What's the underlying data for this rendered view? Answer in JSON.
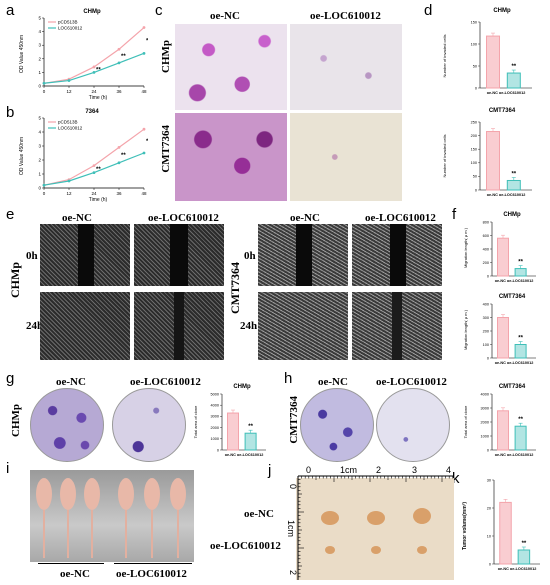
{
  "panels": {
    "a": "a",
    "b": "b",
    "c": "c",
    "d": "d",
    "e": "e",
    "f": "f",
    "g": "g",
    "h": "h",
    "i": "i",
    "j": "j",
    "k": "k"
  },
  "panel_a": {
    "title": "CHMp",
    "xlabel": "Time (h)",
    "ylabel": "OD Value 450nm",
    "legend": [
      "pCD513B",
      "LOC610012"
    ],
    "sig": "**"
  },
  "panel_b": {
    "title": "7364",
    "xlabel": "Time (h)",
    "ylabel": "OD Value 450nm",
    "legend": [
      "pCD513B",
      "LOC610012"
    ],
    "sig": "**"
  },
  "panel_c": {
    "col1": "oe-NC",
    "col2": "oe-LOC610012",
    "row1": "CHMp",
    "row2": "CMT7364"
  },
  "panel_d1": {
    "title": "CHMp",
    "ylabel": "Number of invaded cells",
    "xlabel": "oe-NC oe-LOC610012",
    "sig": "**"
  },
  "panel_d2": {
    "title": "CMT7364",
    "ylabel": "Number of invaded cells",
    "xlabel": "oe-NC oe-LOC610012",
    "sig": "**"
  },
  "panel_e": {
    "col1": "oe-NC",
    "col2": "oe-LOC610012",
    "col3": "oe-NC",
    "col4": "oe-LOC610012",
    "row1": "0h",
    "row2": "24h",
    "group1": "CHMp",
    "group2": "CMT7364"
  },
  "panel_f1": {
    "title": "CHMp",
    "ylabel": "Migration length( μ m )",
    "xlabel": "oe-NC oe-LOC610012",
    "sig": "**"
  },
  "panel_f2": {
    "title": "CMT7364",
    "ylabel": "Migration length( μ m )",
    "xlabel": "oe-NC oe-LOC610012",
    "sig": "**"
  },
  "panel_g": {
    "col1": "oe-NC",
    "col2": "oe-LOC610012",
    "row": "CHMp",
    "chart_title": "CHMp",
    "ylabel": "Total area of clone",
    "xlabel": "oe-NC oe-LOC610012",
    "sig": "**"
  },
  "panel_h": {
    "col1": "oe-NC",
    "col2": "oe-LOC610012",
    "row": "CMT7364",
    "chart_title": "CMT7364",
    "ylabel": "Total area of clone",
    "xlabel": "oe-NC oe-LOC610012",
    "sig": "**"
  },
  "panel_i": {
    "group1": "oe-NC",
    "group2": "oe-LOC610012"
  },
  "panel_j": {
    "row1": "oe-NC",
    "row2": "oe-LOC610012",
    "ruler_top": [
      "0",
      "1cm",
      "2",
      "3",
      "4"
    ],
    "ruler_left": [
      "0",
      "1cm",
      "2"
    ]
  },
  "panel_k": {
    "ylabel": "Tumor volume(mm³)",
    "xlabel": "oe-NC oe-LOC610012",
    "sig": "**"
  },
  "chart_data": [
    {
      "id": "a",
      "type": "line",
      "title": "CHMp",
      "xlabel": "Time (h)",
      "ylabel": "OD Value 450nm",
      "x": [
        0,
        12,
        24,
        36,
        48
      ],
      "xlim": [
        0,
        48
      ],
      "ylim": [
        0,
        5
      ],
      "xticks": [
        "0",
        "12",
        "24",
        "36",
        "48"
      ],
      "yticks": [
        "0",
        "1",
        "2",
        "3",
        "4",
        "5"
      ],
      "series": [
        {
          "name": "pCD513B",
          "values": [
            0.2,
            0.5,
            1.4,
            2.7,
            4.3
          ],
          "color": "#f4a4ab"
        },
        {
          "name": "LOC610012",
          "values": [
            0.2,
            0.4,
            1.0,
            1.7,
            2.4
          ],
          "color": "#3fbfb8"
        }
      ]
    },
    {
      "id": "b",
      "type": "line",
      "title": "7364",
      "xlabel": "Time (h)",
      "ylabel": "OD Value 450nm",
      "x": [
        0,
        12,
        24,
        36,
        48
      ],
      "xlim": [
        0,
        48
      ],
      "ylim": [
        0,
        5
      ],
      "xticks": [
        "0",
        "12",
        "24",
        "36",
        "48"
      ],
      "yticks": [
        "0",
        "1",
        "2",
        "3",
        "4",
        "5"
      ],
      "series": [
        {
          "name": "pCD513B",
          "values": [
            0.2,
            0.6,
            1.6,
            2.9,
            4.2
          ],
          "color": "#f4a4ab"
        },
        {
          "name": "LOC610012",
          "values": [
            0.2,
            0.5,
            1.1,
            1.8,
            2.5
          ],
          "color": "#3fbfb8"
        }
      ]
    },
    {
      "id": "d1",
      "type": "bar",
      "title": "CHMp",
      "categories": [
        "oe-NC",
        "oe-LOC610012"
      ],
      "values": [
        118,
        34
      ],
      "ylim": [
        0,
        150
      ],
      "yticks": [
        "0",
        "50",
        "100",
        "150"
      ],
      "colors": [
        "#f4a4ab",
        "#3fbfb8"
      ]
    },
    {
      "id": "d2",
      "type": "bar",
      "title": "CMT7364",
      "categories": [
        "oe-NC",
        "oe-LOC610012"
      ],
      "values": [
        215,
        35
      ],
      "ylim": [
        0,
        250
      ],
      "yticks": [
        "0",
        "50",
        "100",
        "150",
        "200",
        "250"
      ],
      "colors": [
        "#f4a4ab",
        "#3fbfb8"
      ]
    },
    {
      "id": "f1",
      "type": "bar",
      "title": "CHMp",
      "categories": [
        "oe-NC",
        "oe-LOC610012"
      ],
      "values": [
        560,
        110
      ],
      "ylim": [
        0,
        800
      ],
      "yticks": [
        "0",
        "200",
        "400",
        "600",
        "800"
      ],
      "colors": [
        "#f4a4ab",
        "#3fbfb8"
      ]
    },
    {
      "id": "f2",
      "type": "bar",
      "title": "CMT7364",
      "categories": [
        "oe-NC",
        "oe-LOC610012"
      ],
      "values": [
        300,
        100
      ],
      "ylim": [
        0,
        400
      ],
      "yticks": [
        "0",
        "100",
        "200",
        "300",
        "400"
      ],
      "colors": [
        "#f4a4ab",
        "#3fbfb8"
      ]
    },
    {
      "id": "g",
      "type": "bar",
      "title": "CHMp",
      "categories": [
        "oe-NC",
        "oe-LOC610012"
      ],
      "values": [
        3300,
        1500
      ],
      "ylim": [
        0,
        5000
      ],
      "yticks": [
        "0",
        "1000",
        "2000",
        "3000",
        "4000",
        "5000"
      ],
      "colors": [
        "#f4a4ab",
        "#3fbfb8"
      ]
    },
    {
      "id": "h",
      "type": "bar",
      "title": "CMT7364",
      "categories": [
        "oe-NC",
        "oe-LOC610012"
      ],
      "values": [
        2800,
        1700
      ],
      "ylim": [
        0,
        4000
      ],
      "yticks": [
        "0",
        "1000",
        "2000",
        "3000",
        "4000"
      ],
      "colors": [
        "#f4a4ab",
        "#3fbfb8"
      ]
    },
    {
      "id": "k",
      "type": "bar",
      "title": "",
      "categories": [
        "oe-NC",
        "oe-LOC610012"
      ],
      "values": [
        22,
        5
      ],
      "ylim": [
        0,
        30
      ],
      "yticks": [
        "0",
        "10",
        "20",
        "30"
      ],
      "colors": [
        "#f4a4ab",
        "#3fbfb8"
      ]
    }
  ]
}
